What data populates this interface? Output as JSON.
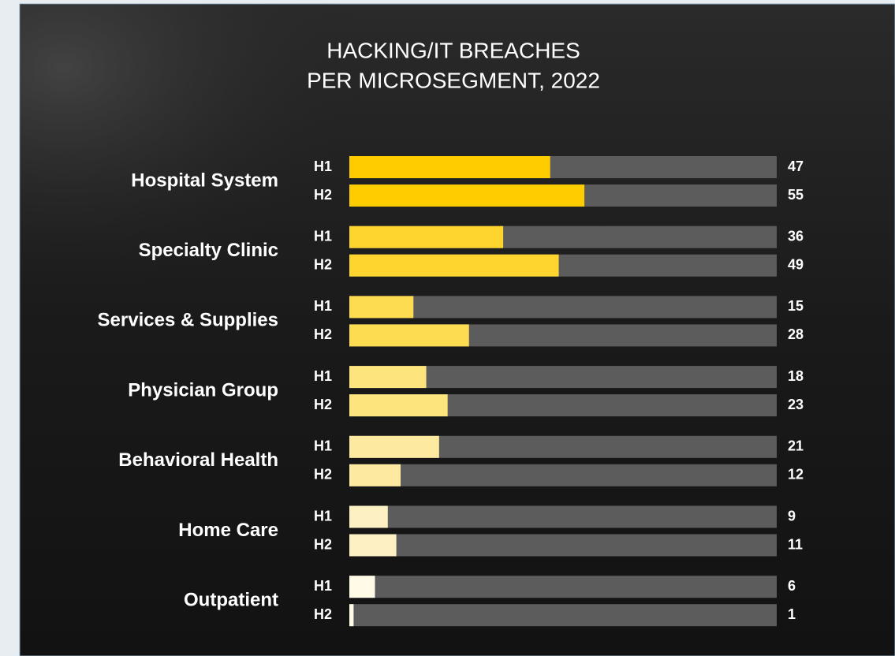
{
  "chart_data": {
    "type": "bar",
    "orientation": "horizontal",
    "title": [
      "HACKING/IT BREACHES",
      "PER MICROSEGMENT, 2022"
    ],
    "categories": [
      "Hospital System",
      "Specialty Clinic",
      "Services & Supplies",
      "Physician Group",
      "Behavioral Health",
      "Home Care",
      "Outpatient"
    ],
    "category_colors": [
      "#ffcc00",
      "#fdd52e",
      "#fddc52",
      "#fde47c",
      "#fde9a0",
      "#fdf1c4",
      "#fffbe6"
    ],
    "track_color": "#5c5c5c",
    "series": [
      {
        "name": "H1",
        "values": [
          47,
          36,
          15,
          18,
          21,
          9,
          6
        ]
      },
      {
        "name": "H2",
        "values": [
          55,
          49,
          28,
          23,
          12,
          11,
          1
        ]
      }
    ],
    "xlim": [
      0,
      100
    ]
  }
}
